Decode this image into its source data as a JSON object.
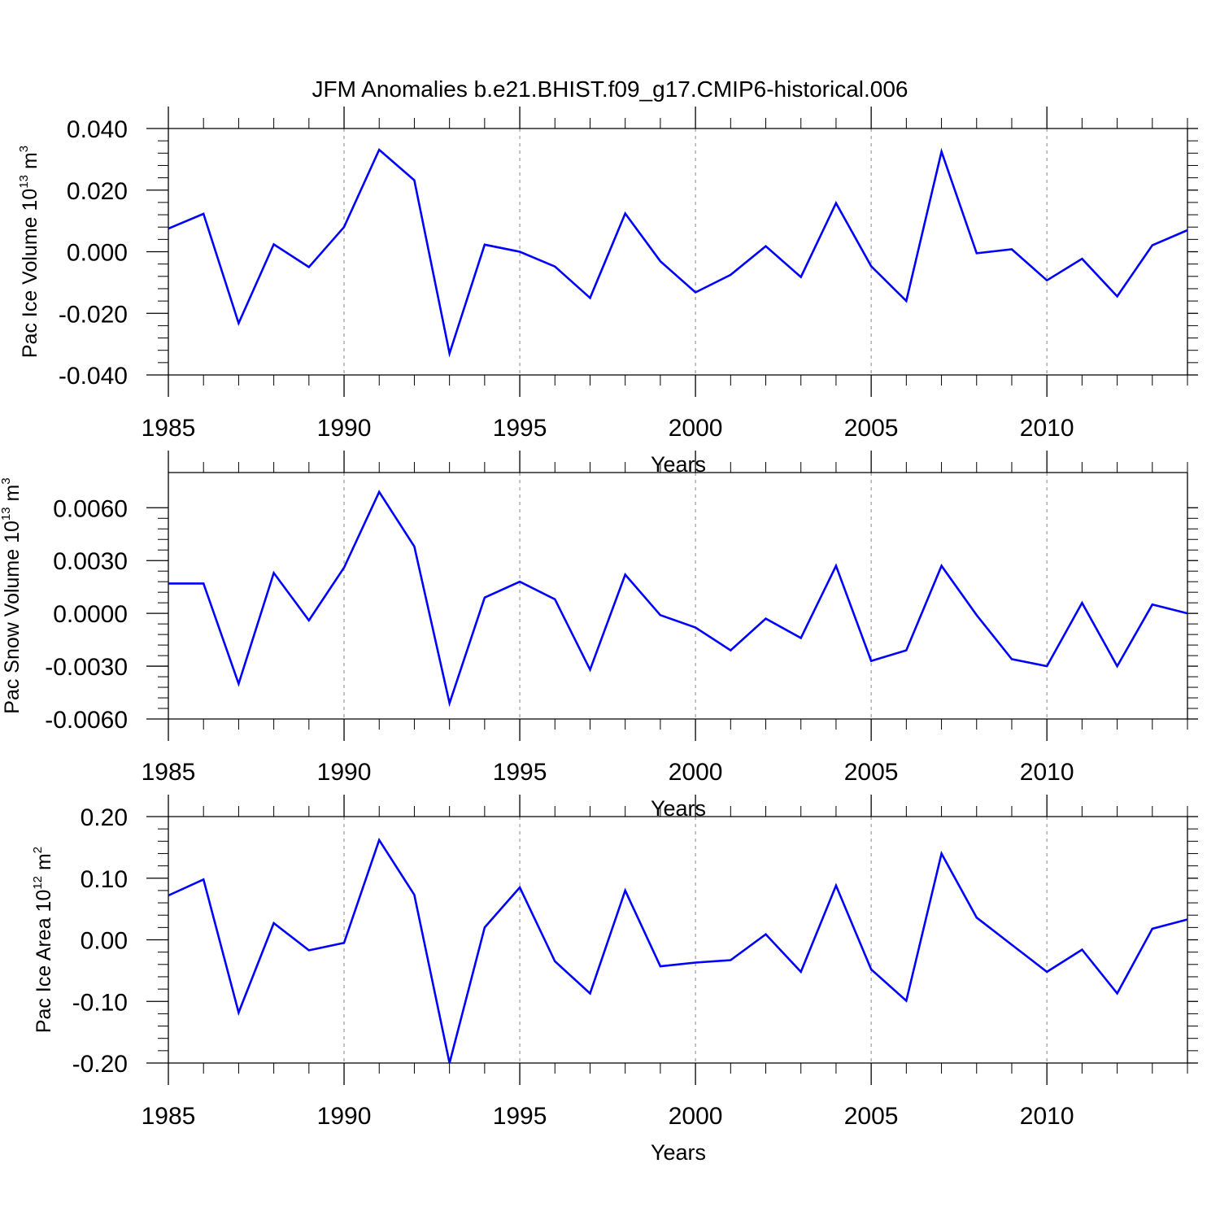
{
  "title": "JFM Anomalies b.e21.BHIST.f09_g17.CMIP6-historical.006",
  "colors": {
    "line": "#0000ff",
    "axes": "#000000",
    "grid": "#999999"
  },
  "chart_data": [
    {
      "type": "line",
      "xlabel": "Years",
      "ylabel": {
        "main": "Pac Ice Volume 10",
        "exp": "13",
        "unit": " m",
        "unit_exp": "3"
      },
      "xlim": [
        1985,
        2014
      ],
      "ylim": [
        -0.04,
        0.04
      ],
      "xticks": [
        1985,
        1990,
        1995,
        2000,
        2005,
        2010
      ],
      "xtick_labels": [
        "1985",
        "1990",
        "1995",
        "2000",
        "2005",
        "2010"
      ],
      "yticks": [
        -0.04,
        -0.02,
        0.0,
        0.02,
        0.04
      ],
      "ytick_labels": [
        "-0.040",
        "-0.020",
        "0.000",
        "0.020",
        "0.040"
      ],
      "x": [
        1985,
        1986,
        1987,
        1988,
        1989,
        1990,
        1991,
        1992,
        1993,
        1994,
        1995,
        1996,
        1997,
        1998,
        1999,
        2000,
        2001,
        2002,
        2003,
        2004,
        2005,
        2006,
        2007,
        2008,
        2009,
        2010,
        2011,
        2012,
        2013,
        2014
      ],
      "values": [
        0.0075,
        0.0123,
        -0.0232,
        0.0024,
        -0.005,
        0.008,
        0.0331,
        0.0232,
        -0.033,
        0.0023,
        0.0,
        -0.0048,
        -0.015,
        0.0124,
        -0.0031,
        -0.0132,
        -0.0075,
        0.0018,
        -0.0082,
        0.0158,
        -0.0047,
        -0.016,
        0.0325,
        -0.0005,
        0.0008,
        -0.0093,
        -0.0023,
        -0.0145,
        0.0021,
        0.007
      ]
    },
    {
      "type": "line",
      "xlabel": "Years",
      "ylabel": {
        "main": "Pac Snow Volume 10",
        "exp": "13",
        "unit": " m",
        "unit_exp": "3"
      },
      "xlim": [
        1985,
        2014
      ],
      "ylim": [
        -0.006,
        0.008
      ],
      "xticks": [
        1985,
        1990,
        1995,
        2000,
        2005,
        2010
      ],
      "xtick_labels": [
        "1985",
        "1990",
        "1995",
        "2000",
        "2005",
        "2010"
      ],
      "yticks": [
        -0.006,
        -0.003,
        0.0,
        0.003,
        0.006
      ],
      "ytick_labels": [
        "-0.0060",
        "-0.0030",
        "0.0000",
        "0.0030",
        "0.0060"
      ],
      "x": [
        1985,
        1986,
        1987,
        1988,
        1989,
        1990,
        1991,
        1992,
        1993,
        1994,
        1995,
        1996,
        1997,
        1998,
        1999,
        2000,
        2001,
        2002,
        2003,
        2004,
        2005,
        2006,
        2007,
        2008,
        2009,
        2010,
        2011,
        2012,
        2013,
        2014
      ],
      "values": [
        0.0017,
        0.0017,
        -0.004,
        0.0023,
        -0.0004,
        0.0026,
        0.0069,
        0.0038,
        -0.0051,
        0.0009,
        0.0018,
        0.0008,
        -0.0032,
        0.0022,
        -0.0001,
        -0.0008,
        -0.0021,
        -0.0003,
        -0.0014,
        0.0027,
        -0.0027,
        -0.0021,
        0.0027,
        -0.0001,
        -0.0026,
        -0.003,
        0.0006,
        -0.003,
        0.0005,
        0.0
      ]
    },
    {
      "type": "line",
      "xlabel": "Years",
      "ylabel": {
        "main": "Pac Ice Area 10",
        "exp": "12",
        "unit": " m",
        "unit_exp": "2"
      },
      "xlim": [
        1985,
        2014
      ],
      "ylim": [
        -0.2,
        0.2
      ],
      "xticks": [
        1985,
        1990,
        1995,
        2000,
        2005,
        2010
      ],
      "xtick_labels": [
        "1985",
        "1990",
        "1995",
        "2000",
        "2005",
        "2010"
      ],
      "yticks": [
        -0.2,
        -0.1,
        0.0,
        0.1,
        0.2
      ],
      "ytick_labels": [
        "-0.20",
        "-0.10",
        "0.00",
        "0.10",
        "0.20"
      ],
      "x": [
        1985,
        1986,
        1987,
        1988,
        1989,
        1990,
        1991,
        1992,
        1993,
        1994,
        1995,
        1996,
        1997,
        1998,
        1999,
        2000,
        2001,
        2002,
        2003,
        2004,
        2005,
        2006,
        2007,
        2008,
        2009,
        2010,
        2011,
        2012,
        2013,
        2014
      ],
      "values": [
        0.072,
        0.098,
        -0.118,
        0.027,
        -0.017,
        -0.005,
        0.162,
        0.073,
        -0.2,
        0.02,
        0.085,
        -0.035,
        -0.087,
        0.08,
        -0.043,
        -0.037,
        -0.033,
        0.009,
        -0.052,
        0.088,
        -0.048,
        -0.099,
        0.14,
        0.036,
        -0.008,
        -0.052,
        -0.016,
        -0.087,
        0.018,
        0.033
      ]
    }
  ]
}
